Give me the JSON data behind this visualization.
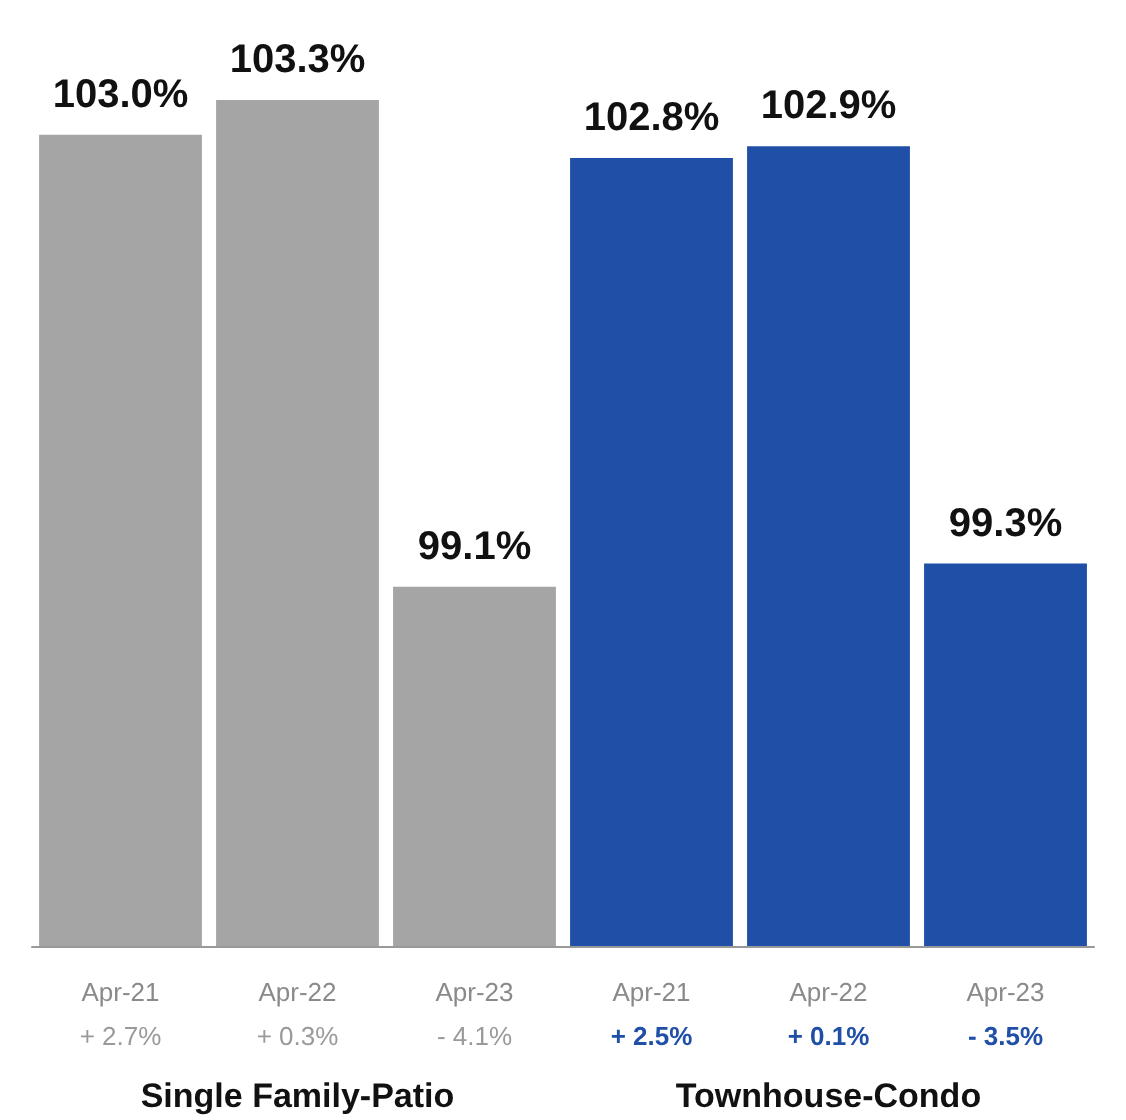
{
  "chart_data": {
    "type": "bar",
    "categories": [
      "Apr-21\n+ 2.7%",
      "Apr-22\n+ 0.3%",
      "Apr-23\n- 4.1%",
      "Apr-21\n+ 2.5%",
      "Apr-22\n+ 0.1%",
      "Apr-23\n- 3.5%"
    ],
    "values": [
      103.0,
      103.3,
      99.1,
      102.8,
      102.9,
      99.3
    ],
    "value_labels": [
      "103.0%",
      "103.3%",
      "99.1%",
      "102.8%",
      "102.9%",
      "99.3%"
    ],
    "colors": [
      "#a5a5a5",
      "#a5a5a5",
      "#a5a5a5",
      "#1f4fa6",
      "#1f4fa6",
      "#1f4fa6"
    ],
    "ylim": [
      96,
      103.3
    ],
    "annotations": [
      "Single Family-Patio",
      "Townhouse-Condo"
    ]
  }
}
